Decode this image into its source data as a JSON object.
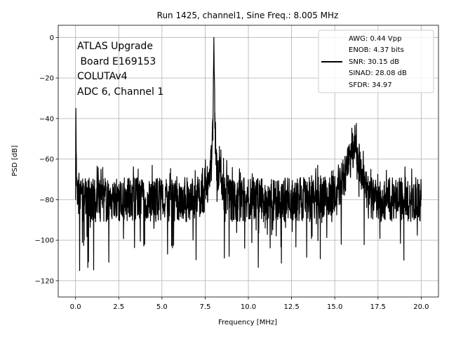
{
  "chart_data": {
    "type": "line",
    "title": "Run 1425, channel1, Sine Freq.: 8.005 MHz",
    "xlabel": "Frequency [MHz]",
    "ylabel": "PSD [dB]",
    "xlim": [
      -1.0,
      21.0
    ],
    "ylim": [
      -128,
      6
    ],
    "xticks": [
      0.0,
      2.5,
      5.0,
      7.5,
      10.0,
      12.5,
      15.0,
      17.5,
      20.0
    ],
    "xtick_labels": [
      "0.0",
      "2.5",
      "5.0",
      "7.5",
      "10.0",
      "12.5",
      "15.0",
      "17.5",
      "20.0"
    ],
    "yticks": [
      0,
      -20,
      -40,
      -60,
      -80,
      -100,
      -120
    ],
    "ytick_labels": [
      "0",
      "−20",
      "−40",
      "−60",
      "−80",
      "−100",
      "−120"
    ],
    "grid": true,
    "legend_position": "top-right",
    "annotation_lines": [
      "ATLAS Upgrade",
      " Board E169153",
      "COLUTAv4",
      "ADC 6, Channel 1"
    ],
    "legend_lines": [
      "AWG: 0.44 Vpp",
      "ENOB: 4.37 bits",
      "SNR: 30.15 dB",
      "SINAD: 28.08 dB",
      "SFDR: 34.97"
    ],
    "series": [
      {
        "color": "#000000",
        "x": [
          0.0,
          0.02,
          0.05,
          0.1,
          0.5,
          1.0,
          1.5,
          2.0,
          2.5,
          3.0,
          3.5,
          4.0,
          4.5,
          5.0,
          5.5,
          6.0,
          6.5,
          7.0,
          7.5,
          7.8,
          7.95,
          8.005,
          8.06,
          8.2,
          8.5,
          9.0,
          10.0,
          11.0,
          12.0,
          13.0,
          14.0,
          14.5,
          15.0,
          15.5,
          16.0,
          16.2,
          16.6,
          17.0,
          17.5,
          18.0,
          19.0,
          20.0
        ],
        "y": [
          -80,
          -35,
          -60,
          -80,
          -80,
          -80,
          -80,
          -80,
          -80,
          -80,
          -80,
          -80,
          -80,
          -80,
          -80,
          -80,
          -80,
          -80,
          -75,
          -70,
          -45,
          0,
          -45,
          -65,
          -75,
          -80,
          -80,
          -80,
          -80,
          -80,
          -80,
          -78,
          -75,
          -70,
          -60,
          -50,
          -72,
          -80,
          -80,
          -80,
          -80,
          -80
        ]
      }
    ]
  }
}
